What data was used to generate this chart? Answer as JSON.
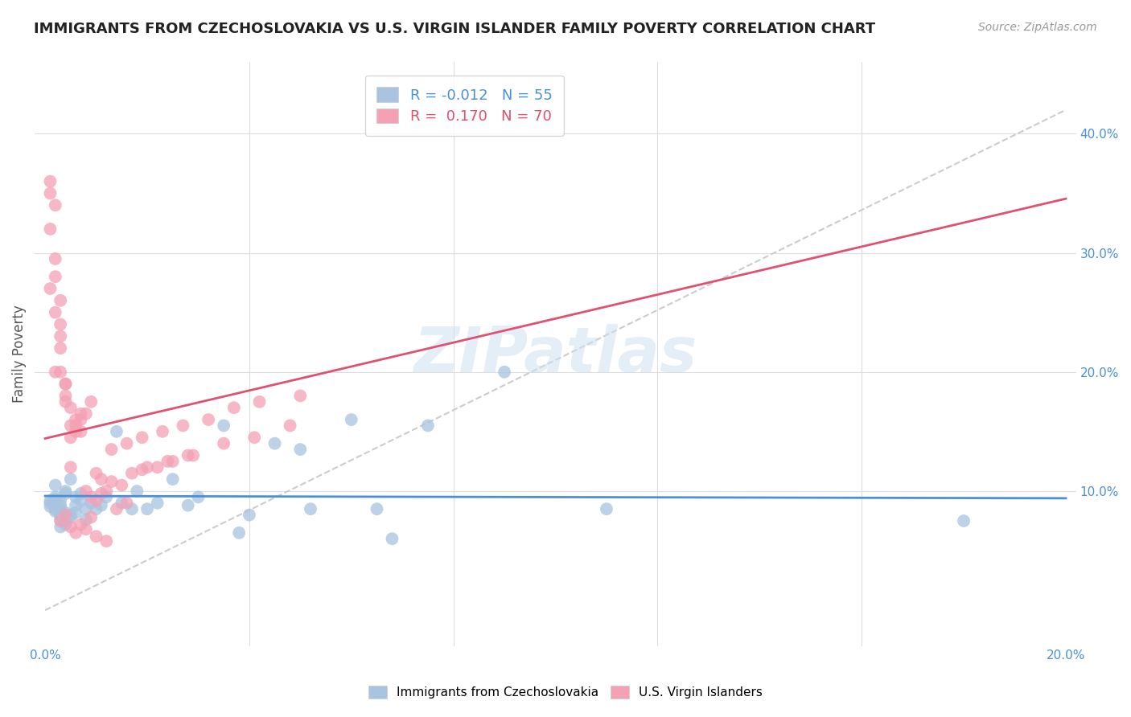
{
  "title": "IMMIGRANTS FROM CZECHOSLOVAKIA VS U.S. VIRGIN ISLANDER FAMILY POVERTY CORRELATION CHART",
  "source": "Source: ZipAtlas.com",
  "ylabel": "Family Poverty",
  "xlim": [
    -0.002,
    0.202
  ],
  "ylim": [
    -0.03,
    0.46
  ],
  "blue_color": "#a8c4e0",
  "pink_color": "#f4a0b5",
  "blue_line_color": "#4a90d9",
  "pink_line_color": "#e05070",
  "R_blue": -0.012,
  "N_blue": 55,
  "R_pink": 0.17,
  "N_pink": 70,
  "legend_labels": [
    "Immigrants from Czechoslovakia",
    "U.S. Virgin Islanders"
  ],
  "watermark": "ZIPatlas",
  "blue_scatter_x": [
    0.001,
    0.002,
    0.001,
    0.003,
    0.002,
    0.004,
    0.003,
    0.005,
    0.004,
    0.002,
    0.003,
    0.002,
    0.001,
    0.004,
    0.003,
    0.005,
    0.006,
    0.004,
    0.005,
    0.003,
    0.007,
    0.006,
    0.008,
    0.007,
    0.009,
    0.01,
    0.012,
    0.015,
    0.018,
    0.02,
    0.025,
    0.03,
    0.035,
    0.04,
    0.045,
    0.05,
    0.06,
    0.065,
    0.075,
    0.09,
    0.11,
    0.18,
    0.002,
    0.003,
    0.004,
    0.006,
    0.008,
    0.011,
    0.014,
    0.017,
    0.022,
    0.028,
    0.038,
    0.052,
    0.068
  ],
  "blue_scatter_y": [
    0.09,
    0.085,
    0.092,
    0.088,
    0.095,
    0.082,
    0.08,
    0.078,
    0.075,
    0.083,
    0.07,
    0.093,
    0.087,
    0.1,
    0.085,
    0.11,
    0.095,
    0.072,
    0.08,
    0.076,
    0.092,
    0.088,
    0.085,
    0.098,
    0.09,
    0.085,
    0.095,
    0.09,
    0.1,
    0.085,
    0.11,
    0.095,
    0.155,
    0.08,
    0.14,
    0.135,
    0.16,
    0.085,
    0.155,
    0.2,
    0.085,
    0.075,
    0.105,
    0.092,
    0.098,
    0.082,
    0.076,
    0.088,
    0.15,
    0.085,
    0.09,
    0.088,
    0.065,
    0.085,
    0.06
  ],
  "pink_scatter_x": [
    0.001,
    0.001,
    0.002,
    0.001,
    0.002,
    0.002,
    0.003,
    0.001,
    0.002,
    0.003,
    0.002,
    0.003,
    0.003,
    0.004,
    0.003,
    0.004,
    0.004,
    0.005,
    0.004,
    0.005,
    0.005,
    0.006,
    0.005,
    0.006,
    0.007,
    0.006,
    0.007,
    0.008,
    0.007,
    0.009,
    0.008,
    0.01,
    0.009,
    0.011,
    0.01,
    0.012,
    0.011,
    0.013,
    0.015,
    0.017,
    0.019,
    0.022,
    0.025,
    0.028,
    0.013,
    0.016,
    0.019,
    0.023,
    0.027,
    0.032,
    0.037,
    0.042,
    0.05,
    0.003,
    0.004,
    0.005,
    0.006,
    0.007,
    0.008,
    0.009,
    0.01,
    0.012,
    0.014,
    0.016,
    0.02,
    0.024,
    0.029,
    0.035,
    0.041,
    0.048
  ],
  "pink_scatter_y": [
    0.35,
    0.36,
    0.34,
    0.32,
    0.295,
    0.28,
    0.26,
    0.27,
    0.25,
    0.23,
    0.2,
    0.24,
    0.22,
    0.19,
    0.2,
    0.18,
    0.19,
    0.17,
    0.175,
    0.155,
    0.12,
    0.15,
    0.145,
    0.16,
    0.165,
    0.155,
    0.15,
    0.165,
    0.16,
    0.175,
    0.1,
    0.115,
    0.095,
    0.098,
    0.092,
    0.1,
    0.11,
    0.108,
    0.105,
    0.115,
    0.118,
    0.12,
    0.125,
    0.13,
    0.135,
    0.14,
    0.145,
    0.15,
    0.155,
    0.16,
    0.17,
    0.175,
    0.18,
    0.075,
    0.08,
    0.07,
    0.065,
    0.072,
    0.068,
    0.078,
    0.062,
    0.058,
    0.085,
    0.09,
    0.12,
    0.125,
    0.13,
    0.14,
    0.145,
    0.155
  ]
}
